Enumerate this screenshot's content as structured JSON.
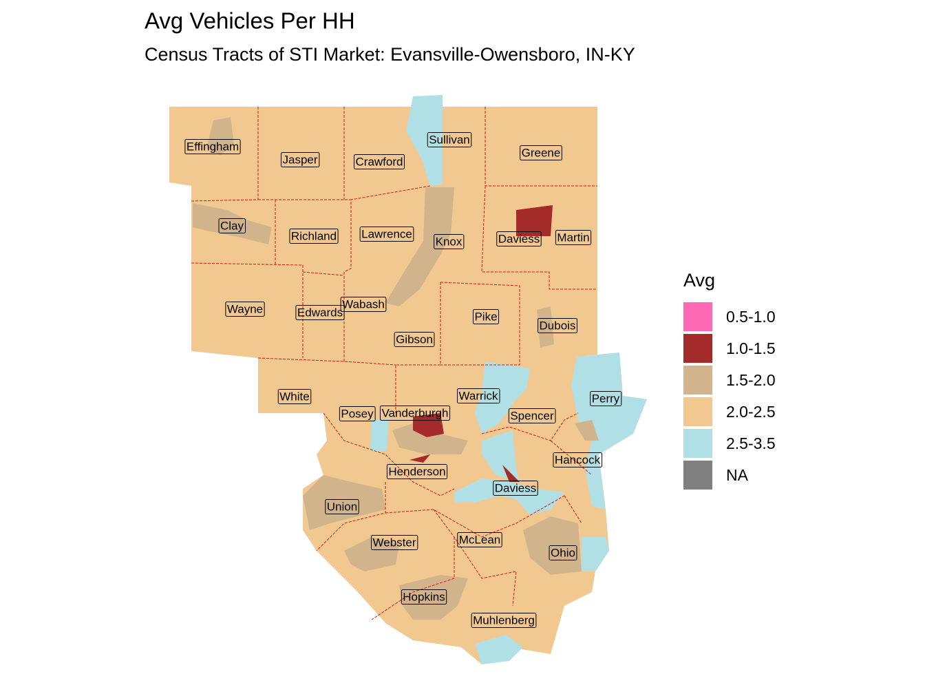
{
  "title": "Avg Vehicles Per HH",
  "subtitle": "Census Tracts of STI Market: Evansville-Owensboro, IN-KY",
  "legend": {
    "title": "Avg",
    "items": [
      {
        "label": "0.5-1.0",
        "color": "#ff69b4"
      },
      {
        "label": "1.0-1.5",
        "color": "#a52a2a"
      },
      {
        "label": "1.5-2.0",
        "color": "#d2b48c"
      },
      {
        "label": "2.0-2.5",
        "color": "#f0c890"
      },
      {
        "label": "2.5-3.5",
        "color": "#b0e0e6"
      },
      {
        "label": "NA",
        "color": "#808080"
      }
    ]
  },
  "counties": [
    "Effingham",
    "Jasper",
    "Crawford",
    "Sullivan",
    "Greene",
    "Clay",
    "Richland",
    "Lawrence",
    "Knox",
    "Daviess",
    "Martin",
    "Wayne",
    "Edwards",
    "Wabash",
    "Pike",
    "Dubois",
    "Gibson",
    "White",
    "Warrick",
    "Perry",
    "Posey",
    "Vanderburgh",
    "Spencer",
    "Hancock",
    "Henderson",
    "Daviess",
    "Union",
    "Webster",
    "McLean",
    "Ohio",
    "Hopkins",
    "Muhlenberg"
  ]
}
